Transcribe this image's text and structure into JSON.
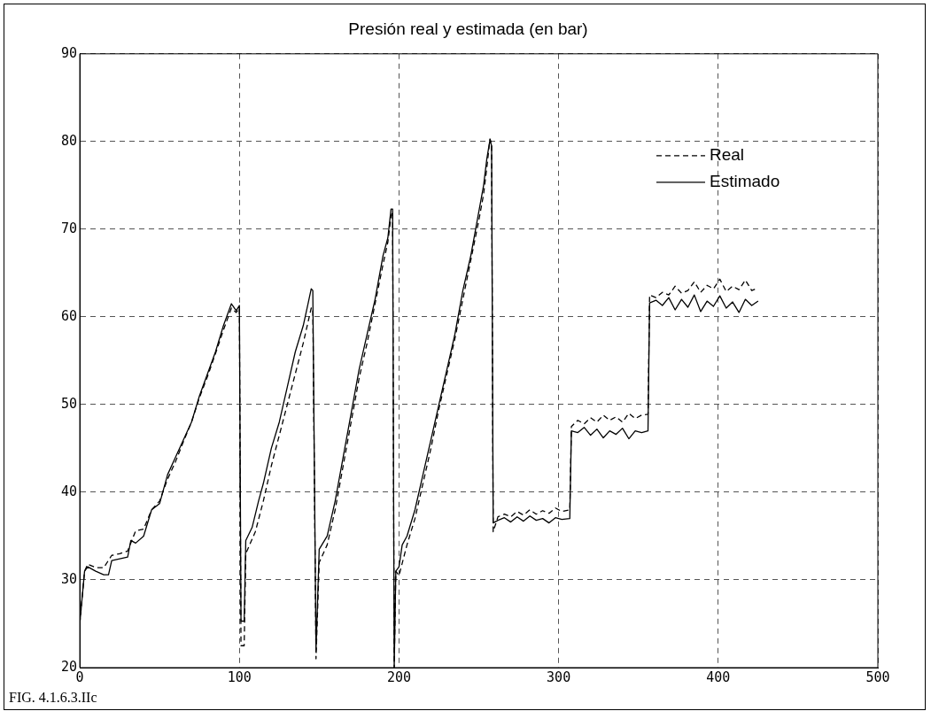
{
  "chart_data": {
    "type": "line",
    "title": "Presión real y estimada (en bar)",
    "annotations": [
      "FIG. 4.1.6.3.IIc"
    ],
    "xlim": [
      0,
      500
    ],
    "xticks": [
      0,
      100,
      200,
      300,
      400,
      500
    ],
    "ylim": [
      20,
      90
    ],
    "yticks": [
      20,
      30,
      40,
      50,
      60,
      70,
      80,
      90
    ],
    "grid": true,
    "legend": "top right",
    "marker": "none",
    "series": [
      {
        "name": "Real",
        "color": "#000000",
        "line_style": "dashed",
        "x": [
          0,
          3,
          5,
          10,
          15,
          20,
          25,
          30,
          35,
          40,
          45,
          50,
          55,
          60,
          65,
          70,
          75,
          80,
          85,
          90,
          95,
          98,
          100,
          101,
          103,
          104,
          110,
          115,
          120,
          125,
          130,
          135,
          140,
          145,
          146,
          148,
          150,
          155,
          160,
          165,
          170,
          175,
          180,
          185,
          190,
          193,
          195,
          196,
          197,
          198,
          200,
          205,
          210,
          215,
          220,
          225,
          230,
          235,
          240,
          245,
          250,
          253,
          255,
          257,
          258,
          259,
          262,
          266,
          270,
          274,
          278,
          282,
          286,
          290,
          294,
          298,
          302,
          307,
          308,
          312,
          316,
          320,
          324,
          328,
          332,
          336,
          340,
          344,
          348,
          352,
          356,
          357,
          361,
          365,
          369,
          373,
          377,
          381,
          385,
          389,
          393,
          397,
          401,
          405,
          409,
          413,
          417,
          421,
          425
        ],
        "values": [
          25,
          31,
          31.8,
          31.4,
          31.4,
          32.8,
          33,
          33.3,
          35.6,
          35.8,
          38,
          39,
          41.5,
          43.5,
          45.8,
          48,
          50.8,
          53.2,
          55.8,
          58.5,
          61,
          60.5,
          61,
          22.5,
          22.5,
          33,
          35.5,
          39,
          43,
          46.5,
          50,
          53.5,
          57,
          61,
          61,
          21,
          32,
          34,
          38,
          43,
          48,
          53,
          57,
          61.5,
          66,
          68.5,
          71.5,
          72,
          20,
          31,
          30.5,
          34,
          37,
          41,
          45,
          49.5,
          53.5,
          57.5,
          62,
          66.5,
          71,
          74,
          77,
          80.3,
          79.8,
          35.5,
          37.2,
          37.5,
          37.2,
          37.8,
          37.4,
          38,
          37.5,
          37.9,
          37.6,
          38.2,
          37.8,
          38,
          47.5,
          48.2,
          47.8,
          48.5,
          48,
          48.8,
          48.2,
          48.6,
          48,
          49,
          48.4,
          48.8,
          48.9,
          62.5,
          62.2,
          62.8,
          62.5,
          63.5,
          62.7,
          63,
          64,
          62.8,
          63.6,
          63.2,
          64.3,
          62.9,
          63.5,
          63.1,
          64.2,
          63,
          63.3
        ]
      },
      {
        "name": "Estimado",
        "color": "#000000",
        "line_style": "solid",
        "x": [
          0,
          3,
          5,
          10,
          15,
          18,
          20,
          25,
          30,
          32,
          35,
          40,
          45,
          50,
          55,
          60,
          65,
          70,
          75,
          80,
          85,
          90,
          95,
          98,
          100,
          101,
          103,
          104,
          108,
          112,
          115,
          120,
          125,
          130,
          135,
          140,
          143,
          145,
          146,
          148,
          150,
          155,
          160,
          165,
          170,
          175,
          180,
          185,
          190,
          193,
          195,
          196,
          197,
          198,
          200,
          202,
          205,
          210,
          215,
          220,
          225,
          230,
          235,
          240,
          245,
          250,
          253,
          255,
          257,
          258,
          259,
          262,
          266,
          270,
          274,
          278,
          282,
          286,
          290,
          294,
          298,
          302,
          307,
          308,
          312,
          316,
          320,
          324,
          328,
          332,
          336,
          340,
          344,
          348,
          352,
          356,
          357,
          361,
          365,
          369,
          373,
          377,
          381,
          385,
          389,
          393,
          397,
          401,
          405,
          409,
          413,
          417,
          421,
          425
        ],
        "values": [
          25,
          31,
          31.5,
          31,
          30.6,
          30.6,
          32.2,
          32.4,
          32.6,
          34.5,
          34.2,
          35,
          38,
          38.7,
          42,
          44,
          46,
          48,
          51,
          53.5,
          56,
          59,
          61.5,
          60.7,
          61.3,
          25.3,
          25.3,
          34.5,
          36,
          39,
          41,
          45,
          48,
          52,
          56,
          59,
          61.5,
          63.2,
          63,
          22,
          33.5,
          35,
          39,
          44,
          49,
          54,
          58,
          62,
          67,
          69,
          72.3,
          72.3,
          20,
          31,
          31.5,
          34,
          35,
          38,
          42,
          46,
          50,
          54,
          58,
          63,
          67,
          72,
          75,
          78,
          80.2,
          79.5,
          36.5,
          36.8,
          37.1,
          36.6,
          37.2,
          36.7,
          37.3,
          36.8,
          37,
          36.5,
          37.1,
          36.9,
          37,
          47,
          46.8,
          47.4,
          46.5,
          47.2,
          46.2,
          47,
          46.6,
          47.3,
          46.1,
          47,
          46.8,
          47,
          61.6,
          61.9,
          61.3,
          62.2,
          60.8,
          62,
          61.1,
          62.5,
          60.6,
          61.8,
          61.2,
          62.4,
          61,
          61.7,
          60.5,
          62,
          61.3,
          61.8
        ]
      }
    ]
  }
}
